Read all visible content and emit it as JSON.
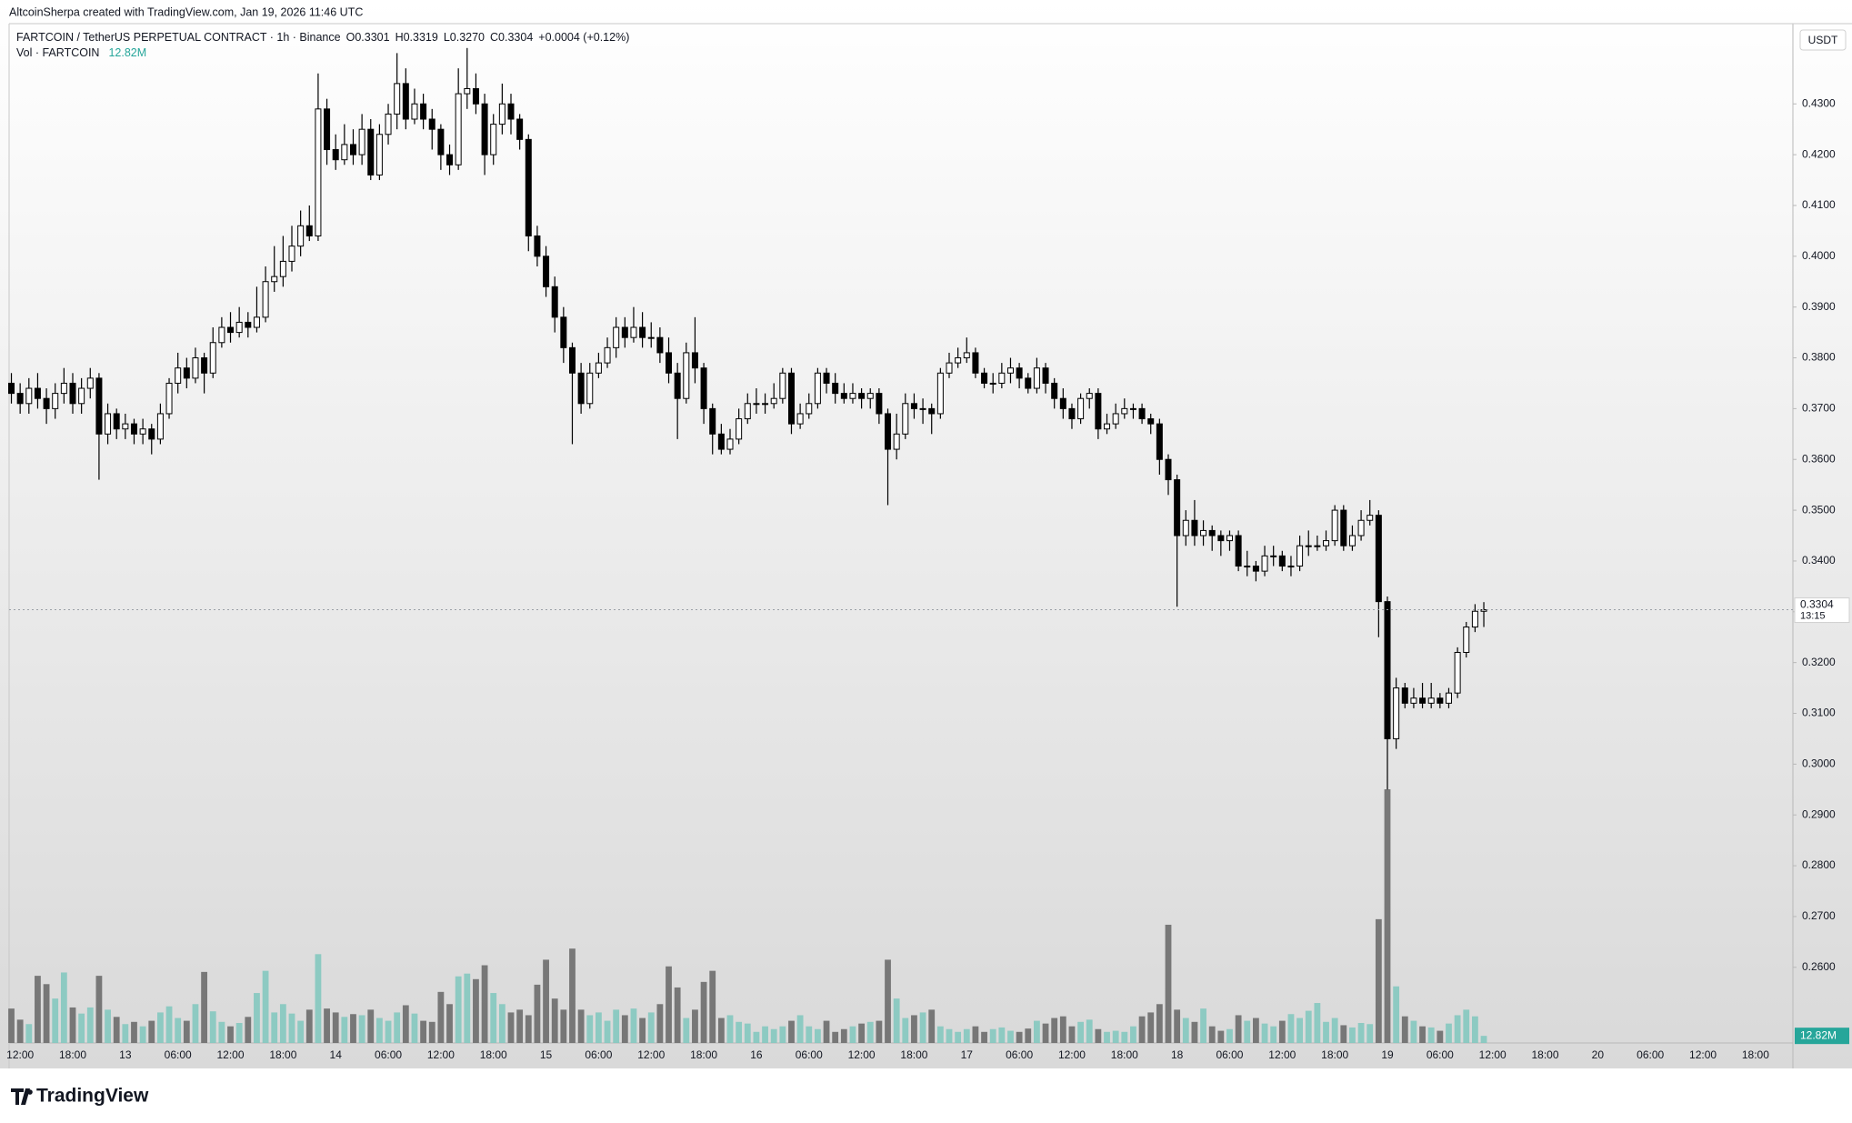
{
  "chart_data": {
    "type": "candlestick",
    "attribution": "AltcoinSherpa created with TradingView.com, Jan 19, 2026 11:46 UTC",
    "symbol": "FARTCOIN / TetherUS PERPETUAL CONTRACT · 1h · Binance",
    "header_values": [
      "O0.3301",
      "H0.3319",
      "L0.3270",
      "C0.3304",
      "+0.0004 (+0.12%)"
    ],
    "volume_title": "Vol · FARTCOIN",
    "unit": "USDT",
    "countdown": "13:15",
    "brand": "TradingView",
    "up_color": "#ffffff",
    "down_color": "#000000",
    "volume_up_color": "#7fc7bd",
    "volume_down_color": "#727272",
    "grid": false,
    "ylim": [
      0.2451,
      0.4458
    ],
    "yticks": [
      {
        "value": 0.26,
        "label": "0.2600"
      },
      {
        "value": 0.27,
        "label": "0.2700"
      },
      {
        "value": 0.28,
        "label": "0.2800"
      },
      {
        "value": 0.29,
        "label": "0.2900"
      },
      {
        "value": 0.3,
        "label": "0.3000"
      },
      {
        "value": 0.31,
        "label": "0.3100"
      },
      {
        "value": 0.32,
        "label": "0.3200"
      },
      {
        "value": 0.33,
        "label": "0.3300"
      },
      {
        "value": 0.34,
        "label": "0.3400"
      },
      {
        "value": 0.35,
        "label": "0.3500"
      },
      {
        "value": 0.36,
        "label": "0.3600"
      },
      {
        "value": 0.37,
        "label": "0.3700"
      },
      {
        "value": 0.38,
        "label": "0.3800"
      },
      {
        "value": 0.39,
        "label": "0.3900"
      },
      {
        "value": 0.4,
        "label": "0.4000"
      },
      {
        "value": 0.41,
        "label": "0.4100"
      },
      {
        "value": 0.42,
        "label": "0.4200"
      },
      {
        "value": 0.43,
        "label": "0.4300"
      }
    ],
    "x_labels": [
      "12:00",
      "18:00",
      "13",
      "06:00",
      "12:00",
      "18:00",
      "14",
      "06:00",
      "12:00",
      "18:00",
      "15",
      "06:00",
      "12:00",
      "18:00",
      "16",
      "06:00",
      "12:00",
      "18:00",
      "17",
      "06:00",
      "12:00",
      "18:00",
      "18",
      "06:00",
      "12:00",
      "18:00",
      "19",
      "06:00",
      "12:00",
      "18:00",
      "20",
      "06:00",
      "12:00",
      "18:00"
    ],
    "ohlc": [
      [
        0.375,
        0.377,
        0.371,
        0.373
      ],
      [
        0.373,
        0.375,
        0.369,
        0.371
      ],
      [
        0.371,
        0.376,
        0.369,
        0.374
      ],
      [
        0.374,
        0.377,
        0.37,
        0.372
      ],
      [
        0.372,
        0.374,
        0.367,
        0.37
      ],
      [
        0.37,
        0.375,
        0.368,
        0.373
      ],
      [
        0.373,
        0.378,
        0.371,
        0.375
      ],
      [
        0.375,
        0.377,
        0.369,
        0.371
      ],
      [
        0.371,
        0.376,
        0.369,
        0.374
      ],
      [
        0.374,
        0.378,
        0.372,
        0.376
      ],
      [
        0.376,
        0.377,
        0.356,
        0.365
      ],
      [
        0.365,
        0.371,
        0.363,
        0.369
      ],
      [
        0.369,
        0.37,
        0.364,
        0.366
      ],
      [
        0.366,
        0.369,
        0.364,
        0.367
      ],
      [
        0.367,
        0.368,
        0.363,
        0.365
      ],
      [
        0.365,
        0.368,
        0.363,
        0.366
      ],
      [
        0.366,
        0.367,
        0.361,
        0.364
      ],
      [
        0.364,
        0.371,
        0.363,
        0.369
      ],
      [
        0.369,
        0.376,
        0.368,
        0.375
      ],
      [
        0.375,
        0.381,
        0.373,
        0.378
      ],
      [
        0.378,
        0.38,
        0.374,
        0.376
      ],
      [
        0.376,
        0.382,
        0.375,
        0.38
      ],
      [
        0.38,
        0.381,
        0.373,
        0.377
      ],
      [
        0.377,
        0.386,
        0.376,
        0.383
      ],
      [
        0.383,
        0.388,
        0.382,
        0.386
      ],
      [
        0.386,
        0.389,
        0.383,
        0.385
      ],
      [
        0.385,
        0.39,
        0.384,
        0.387
      ],
      [
        0.387,
        0.389,
        0.384,
        0.386
      ],
      [
        0.386,
        0.394,
        0.385,
        0.388
      ],
      [
        0.388,
        0.398,
        0.387,
        0.395
      ],
      [
        0.395,
        0.402,
        0.393,
        0.396
      ],
      [
        0.396,
        0.404,
        0.394,
        0.399
      ],
      [
        0.399,
        0.406,
        0.397,
        0.402
      ],
      [
        0.402,
        0.409,
        0.4,
        0.406
      ],
      [
        0.406,
        0.41,
        0.403,
        0.404
      ],
      [
        0.404,
        0.436,
        0.403,
        0.429
      ],
      [
        0.429,
        0.431,
        0.418,
        0.421
      ],
      [
        0.421,
        0.424,
        0.417,
        0.419
      ],
      [
        0.419,
        0.426,
        0.418,
        0.422
      ],
      [
        0.422,
        0.425,
        0.418,
        0.42
      ],
      [
        0.42,
        0.428,
        0.418,
        0.425
      ],
      [
        0.425,
        0.427,
        0.415,
        0.416
      ],
      [
        0.416,
        0.426,
        0.415,
        0.424
      ],
      [
        0.424,
        0.43,
        0.422,
        0.428
      ],
      [
        0.428,
        0.44,
        0.425,
        0.434
      ],
      [
        0.434,
        0.437,
        0.425,
        0.427
      ],
      [
        0.427,
        0.433,
        0.426,
        0.43
      ],
      [
        0.43,
        0.432,
        0.425,
        0.427
      ],
      [
        0.427,
        0.429,
        0.421,
        0.425
      ],
      [
        0.425,
        0.426,
        0.417,
        0.42
      ],
      [
        0.42,
        0.422,
        0.416,
        0.418
      ],
      [
        0.418,
        0.437,
        0.417,
        0.432
      ],
      [
        0.432,
        0.441,
        0.429,
        0.433
      ],
      [
        0.433,
        0.436,
        0.428,
        0.43
      ],
      [
        0.43,
        0.432,
        0.416,
        0.42
      ],
      [
        0.42,
        0.428,
        0.418,
        0.426
      ],
      [
        0.426,
        0.434,
        0.424,
        0.43
      ],
      [
        0.43,
        0.432,
        0.424,
        0.427
      ],
      [
        0.427,
        0.428,
        0.421,
        0.423
      ],
      [
        0.423,
        0.424,
        0.401,
        0.404
      ],
      [
        0.404,
        0.406,
        0.398,
        0.4
      ],
      [
        0.4,
        0.402,
        0.392,
        0.394
      ],
      [
        0.394,
        0.396,
        0.385,
        0.388
      ],
      [
        0.388,
        0.39,
        0.379,
        0.382
      ],
      [
        0.382,
        0.383,
        0.363,
        0.377
      ],
      [
        0.377,
        0.379,
        0.369,
        0.371
      ],
      [
        0.371,
        0.379,
        0.37,
        0.377
      ],
      [
        0.377,
        0.381,
        0.376,
        0.379
      ],
      [
        0.379,
        0.384,
        0.378,
        0.382
      ],
      [
        0.382,
        0.388,
        0.38,
        0.386
      ],
      [
        0.386,
        0.388,
        0.382,
        0.384
      ],
      [
        0.384,
        0.39,
        0.383,
        0.386
      ],
      [
        0.386,
        0.389,
        0.382,
        0.384
      ],
      [
        0.384,
        0.387,
        0.382,
        0.384
      ],
      [
        0.384,
        0.386,
        0.379,
        0.381
      ],
      [
        0.381,
        0.384,
        0.375,
        0.377
      ],
      [
        0.377,
        0.379,
        0.364,
        0.372
      ],
      [
        0.372,
        0.383,
        0.371,
        0.381
      ],
      [
        0.381,
        0.388,
        0.375,
        0.378
      ],
      [
        0.378,
        0.379,
        0.367,
        0.37
      ],
      [
        0.37,
        0.371,
        0.361,
        0.365
      ],
      [
        0.365,
        0.367,
        0.361,
        0.362
      ],
      [
        0.362,
        0.366,
        0.361,
        0.364
      ],
      [
        0.364,
        0.37,
        0.363,
        0.368
      ],
      [
        0.368,
        0.373,
        0.367,
        0.371
      ],
      [
        0.371,
        0.374,
        0.369,
        0.371
      ],
      [
        0.371,
        0.373,
        0.369,
        0.371
      ],
      [
        0.371,
        0.375,
        0.37,
        0.372
      ],
      [
        0.372,
        0.378,
        0.371,
        0.377
      ],
      [
        0.377,
        0.378,
        0.365,
        0.367
      ],
      [
        0.367,
        0.371,
        0.366,
        0.369
      ],
      [
        0.369,
        0.373,
        0.368,
        0.371
      ],
      [
        0.371,
        0.378,
        0.37,
        0.377
      ],
      [
        0.377,
        0.378,
        0.373,
        0.375
      ],
      [
        0.375,
        0.377,
        0.371,
        0.373
      ],
      [
        0.373,
        0.375,
        0.371,
        0.372
      ],
      [
        0.372,
        0.375,
        0.371,
        0.373
      ],
      [
        0.373,
        0.374,
        0.37,
        0.372
      ],
      [
        0.372,
        0.374,
        0.37,
        0.373
      ],
      [
        0.373,
        0.374,
        0.367,
        0.369
      ],
      [
        0.369,
        0.37,
        0.351,
        0.362
      ],
      [
        0.362,
        0.369,
        0.36,
        0.365
      ],
      [
        0.365,
        0.373,
        0.364,
        0.371
      ],
      [
        0.371,
        0.373,
        0.368,
        0.37
      ],
      [
        0.37,
        0.372,
        0.367,
        0.37
      ],
      [
        0.37,
        0.371,
        0.365,
        0.369
      ],
      [
        0.369,
        0.378,
        0.368,
        0.377
      ],
      [
        0.377,
        0.381,
        0.376,
        0.379
      ],
      [
        0.379,
        0.382,
        0.378,
        0.38
      ],
      [
        0.38,
        0.384,
        0.379,
        0.381
      ],
      [
        0.381,
        0.382,
        0.376,
        0.377
      ],
      [
        0.377,
        0.378,
        0.374,
        0.375
      ],
      [
        0.375,
        0.377,
        0.373,
        0.375
      ],
      [
        0.375,
        0.379,
        0.374,
        0.377
      ],
      [
        0.377,
        0.38,
        0.375,
        0.378
      ],
      [
        0.378,
        0.379,
        0.374,
        0.376
      ],
      [
        0.376,
        0.377,
        0.373,
        0.374
      ],
      [
        0.374,
        0.38,
        0.373,
        0.378
      ],
      [
        0.378,
        0.379,
        0.373,
        0.375
      ],
      [
        0.375,
        0.376,
        0.37,
        0.372
      ],
      [
        0.372,
        0.374,
        0.368,
        0.37
      ],
      [
        0.37,
        0.371,
        0.366,
        0.368
      ],
      [
        0.368,
        0.373,
        0.367,
        0.372
      ],
      [
        0.372,
        0.374,
        0.37,
        0.373
      ],
      [
        0.373,
        0.374,
        0.364,
        0.366
      ],
      [
        0.366,
        0.369,
        0.365,
        0.367
      ],
      [
        0.367,
        0.371,
        0.366,
        0.369
      ],
      [
        0.369,
        0.372,
        0.368,
        0.37
      ],
      [
        0.37,
        0.371,
        0.368,
        0.37
      ],
      [
        0.37,
        0.371,
        0.367,
        0.368
      ],
      [
        0.368,
        0.369,
        0.365,
        0.367
      ],
      [
        0.367,
        0.368,
        0.357,
        0.36
      ],
      [
        0.36,
        0.361,
        0.353,
        0.356
      ],
      [
        0.356,
        0.357,
        0.331,
        0.345
      ],
      [
        0.345,
        0.35,
        0.343,
        0.348
      ],
      [
        0.348,
        0.352,
        0.343,
        0.345
      ],
      [
        0.345,
        0.348,
        0.343,
        0.346
      ],
      [
        0.346,
        0.347,
        0.342,
        0.345
      ],
      [
        0.345,
        0.346,
        0.341,
        0.344
      ],
      [
        0.344,
        0.346,
        0.342,
        0.345
      ],
      [
        0.345,
        0.346,
        0.338,
        0.339
      ],
      [
        0.339,
        0.342,
        0.337,
        0.339
      ],
      [
        0.339,
        0.34,
        0.336,
        0.338
      ],
      [
        0.338,
        0.343,
        0.337,
        0.341
      ],
      [
        0.341,
        0.343,
        0.339,
        0.341
      ],
      [
        0.341,
        0.342,
        0.338,
        0.339
      ],
      [
        0.339,
        0.341,
        0.337,
        0.339
      ],
      [
        0.339,
        0.345,
        0.338,
        0.343
      ],
      [
        0.343,
        0.346,
        0.341,
        0.343
      ],
      [
        0.343,
        0.345,
        0.342,
        0.343
      ],
      [
        0.343,
        0.346,
        0.342,
        0.344
      ],
      [
        0.344,
        0.351,
        0.343,
        0.35
      ],
      [
        0.35,
        0.351,
        0.342,
        0.343
      ],
      [
        0.343,
        0.347,
        0.342,
        0.345
      ],
      [
        0.345,
        0.35,
        0.344,
        0.348
      ],
      [
        0.348,
        0.352,
        0.347,
        0.349
      ],
      [
        0.349,
        0.35,
        0.325,
        0.332
      ],
      [
        0.332,
        0.333,
        0.295,
        0.305
      ],
      [
        0.305,
        0.317,
        0.303,
        0.315
      ],
      [
        0.315,
        0.316,
        0.311,
        0.312
      ],
      [
        0.312,
        0.315,
        0.311,
        0.313
      ],
      [
        0.313,
        0.316,
        0.311,
        0.312
      ],
      [
        0.312,
        0.316,
        0.311,
        0.313
      ],
      [
        0.313,
        0.314,
        0.311,
        0.312
      ],
      [
        0.312,
        0.315,
        0.311,
        0.314
      ],
      [
        0.314,
        0.323,
        0.313,
        0.322
      ],
      [
        0.322,
        0.328,
        0.321,
        0.327
      ],
      [
        0.327,
        0.3315,
        0.326,
        0.3301
      ],
      [
        0.3301,
        0.3319,
        0.327,
        0.3304
      ]
    ],
    "volume": [
      62,
      42,
      34,
      121,
      106,
      80,
      127,
      64,
      53,
      64,
      121,
      60,
      47,
      34,
      38,
      30,
      40,
      55,
      66,
      45,
      40,
      70,
      128,
      57,
      38,
      30,
      36,
      47,
      90,
      130,
      55,
      70,
      53,
      40,
      60,
      160,
      62,
      55,
      47,
      52,
      50,
      60,
      45,
      40,
      55,
      68,
      53,
      40,
      38,
      92,
      70,
      120,
      125,
      115,
      140,
      90,
      70,
      55,
      60,
      50,
      105,
      150,
      80,
      60,
      170,
      60,
      50,
      55,
      40,
      60,
      50,
      62,
      45,
      55,
      70,
      138,
      100,
      45,
      60,
      110,
      130,
      45,
      50,
      38,
      35,
      20,
      30,
      25,
      30,
      40,
      50,
      30,
      25,
      40,
      20,
      25,
      30,
      35,
      38,
      40,
      150,
      80,
      45,
      50,
      55,
      60,
      30,
      25,
      20,
      25,
      30,
      20,
      25,
      28,
      22,
      20,
      26,
      40,
      35,
      45,
      48,
      30,
      38,
      42,
      25,
      20,
      22,
      20,
      30,
      48,
      55,
      70,
      213,
      60,
      45,
      38,
      62,
      30,
      22,
      25,
      50,
      40,
      45,
      35,
      30,
      40,
      52,
      45,
      58,
      72,
      38,
      45,
      32,
      28,
      36,
      34,
      223,
      457,
      102,
      48,
      40,
      30,
      28,
      22,
      35,
      50,
      60,
      48,
      12.82
    ],
    "volume_value_labels": {
      "168": "12.82M"
    }
  }
}
